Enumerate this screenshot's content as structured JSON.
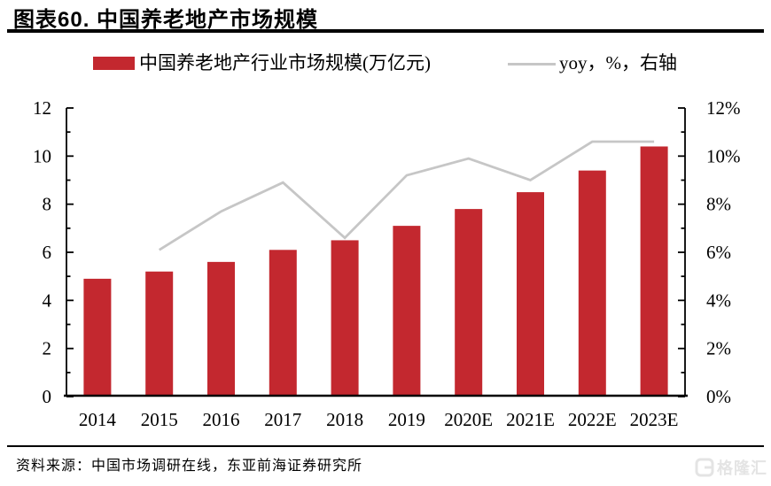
{
  "header": {
    "title": "图表60. 中国养老地产市场规模"
  },
  "legend": {
    "bars_label": "中国养老地产行业市场规模(万亿元)",
    "line_label": "yoy，%，右轴"
  },
  "chart_data": {
    "type": "bar+line combo",
    "categories": [
      "2014",
      "2015",
      "2016",
      "2017",
      "2018",
      "2019",
      "2020E",
      "2021E",
      "2022E",
      "2023E"
    ],
    "series": [
      {
        "name": "中国养老地产行业市场规模(万亿元)",
        "type": "bar",
        "axis": "left",
        "values": [
          4.9,
          5.2,
          5.6,
          6.1,
          6.5,
          7.1,
          7.8,
          8.5,
          9.4,
          10.4
        ]
      },
      {
        "name": "yoy，%，右轴",
        "type": "line",
        "axis": "right",
        "values": [
          null,
          6.1,
          7.7,
          8.9,
          6.6,
          9.2,
          9.9,
          9.0,
          10.6,
          10.6
        ]
      }
    ],
    "left_axis": {
      "min": 0,
      "max": 12,
      "major_step": 2,
      "minor_step": 1,
      "tick_labels": [
        "0",
        "2",
        "4",
        "6",
        "8",
        "10",
        "12"
      ]
    },
    "right_axis": {
      "min": 0,
      "max": 12,
      "major_step": 2,
      "minor_step": 1,
      "tick_labels": [
        "0%",
        "2%",
        "4%",
        "6%",
        "8%",
        "10%",
        "12%"
      ]
    },
    "grid": false,
    "legend_position": "top"
  },
  "colors": {
    "bar": "#c3282f",
    "line": "#c6c6c6",
    "axis": "#000000",
    "watermark": "#e4e4e4"
  },
  "footer": {
    "source": "资料来源：中国市场调研在线，东亚前海证券研究所",
    "watermark": "格隆汇"
  }
}
